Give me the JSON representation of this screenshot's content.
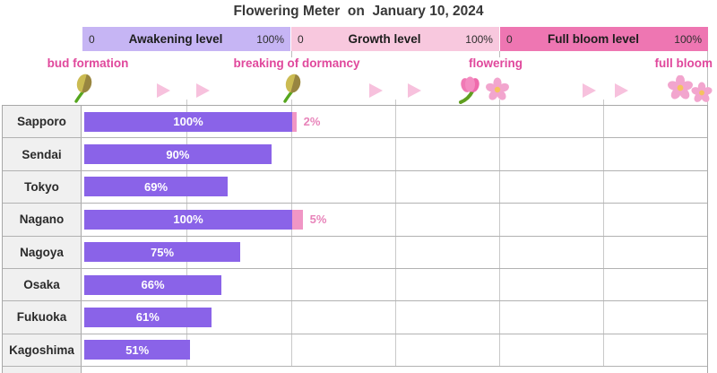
{
  "title": "Flowering Meter  on  January 10, 2024",
  "meters": [
    {
      "name": "Awakening level",
      "min_label": "0",
      "max_label": "100%",
      "color": "#c6b5f4"
    },
    {
      "name": "Growth level",
      "min_label": "0",
      "max_label": "100%",
      "color": "#f8c8de"
    },
    {
      "name": "Full bloom level",
      "min_label": "0",
      "max_label": "100%",
      "color": "#ee76b2"
    }
  ],
  "stages": [
    {
      "label": "bud formation",
      "icon": "bud-icon"
    },
    {
      "label": "breaking of dormancy",
      "icon": "bud-icon"
    },
    {
      "label": "flowering",
      "icon": "flowering-icon"
    },
    {
      "label": "full bloom",
      "icon": "full-bloom-icon"
    }
  ],
  "chart_data": {
    "type": "bar",
    "orientation": "horizontal",
    "title": "Flowering Meter on January 10, 2024",
    "categories": [
      "Sapporo",
      "Sendai",
      "Tokyo",
      "Nagano",
      "Nagoya",
      "Osaka",
      "Fukuoka",
      "Kagoshima"
    ],
    "series": [
      {
        "name": "Awakening level",
        "unit": "%",
        "color": "#8a63e8",
        "values": [
          100,
          90,
          69,
          100,
          75,
          66,
          61,
          51
        ]
      },
      {
        "name": "Growth level",
        "unit": "%",
        "color": "#f096c5",
        "values": [
          2,
          0,
          0,
          5,
          0,
          0,
          0,
          0
        ]
      }
    ],
    "bar_labels": [
      "100%",
      "90%",
      "69%",
      "100%",
      "75%",
      "66%",
      "61%",
      "51%"
    ],
    "overflow_labels": [
      "2%",
      "",
      "",
      "5%",
      "",
      "",
      "",
      ""
    ],
    "axis_note": "three chained meters, each 0-100%, grid every 50%",
    "grid": true,
    "legend_position": "top-bands"
  },
  "colors": {
    "awakening_bar": "#8a63e8",
    "growth_bar": "#f096c5",
    "stage_text": "#e0489c",
    "arrow": "#f7c1dd",
    "row_label_bg": "#f0f0f0",
    "grid_line": "#c9c9c9"
  }
}
